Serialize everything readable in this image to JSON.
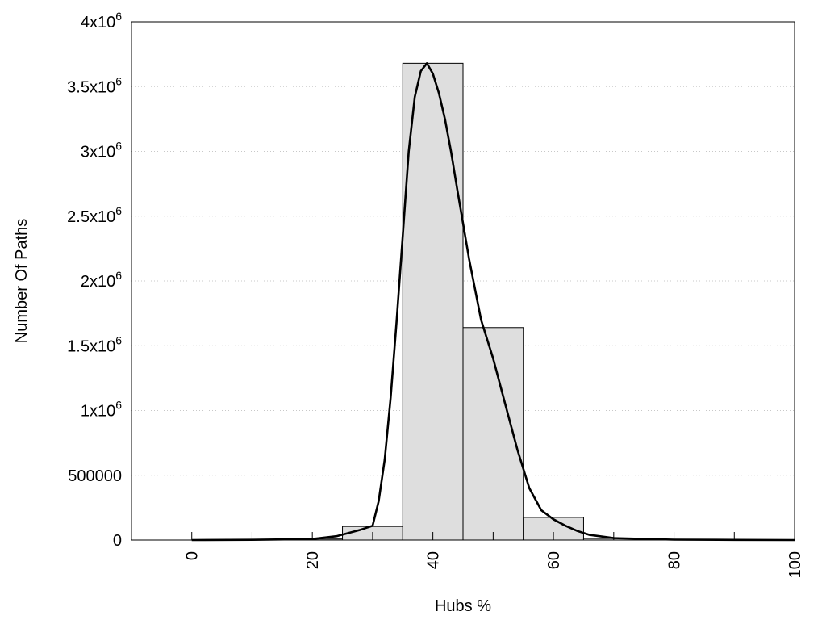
{
  "chart_data": {
    "type": "bar",
    "title": "",
    "xlabel": "Hubs %",
    "ylabel": "Number Of Paths",
    "xlim": [
      -10,
      100
    ],
    "ylim": [
      0,
      4000000
    ],
    "x_ticks": [
      {
        "value": 0,
        "label": "0"
      },
      {
        "value": 20,
        "label": "20"
      },
      {
        "value": 40,
        "label": "40"
      },
      {
        "value": 60,
        "label": "60"
      },
      {
        "value": 80,
        "label": "80"
      },
      {
        "value": 100,
        "label": "100"
      }
    ],
    "x_minor_ticks": [
      10,
      30,
      50,
      70,
      90
    ],
    "y_ticks": [
      {
        "value": 0,
        "base": "0",
        "exp": ""
      },
      {
        "value": 500000,
        "base": "500000",
        "exp": ""
      },
      {
        "value": 1000000,
        "base": "1x10",
        "exp": "6"
      },
      {
        "value": 1500000,
        "base": "1.5x10",
        "exp": "6"
      },
      {
        "value": 2000000,
        "base": "2x10",
        "exp": "6"
      },
      {
        "value": 2500000,
        "base": "2.5x10",
        "exp": "6"
      },
      {
        "value": 3000000,
        "base": "3x10",
        "exp": "6"
      },
      {
        "value": 3500000,
        "base": "3.5x10",
        "exp": "6"
      },
      {
        "value": 4000000,
        "base": "4x10",
        "exp": "6"
      }
    ],
    "grid": "horizontal-dotted",
    "bar_width": 10,
    "bars": [
      {
        "x": 0,
        "value": 0
      },
      {
        "x": 10,
        "value": 2000
      },
      {
        "x": 20,
        "value": 8000
      },
      {
        "x": 30,
        "value": 105000
      },
      {
        "x": 40,
        "value": 3680000
      },
      {
        "x": 50,
        "value": 1640000
      },
      {
        "x": 60,
        "value": 175000
      },
      {
        "x": 70,
        "value": 12000
      },
      {
        "x": 80,
        "value": 3000
      },
      {
        "x": 90,
        "value": 1000
      }
    ],
    "curve": [
      {
        "x": 0,
        "y": 0
      },
      {
        "x": 10,
        "y": 2000
      },
      {
        "x": 20,
        "y": 8000
      },
      {
        "x": 24,
        "y": 30000
      },
      {
        "x": 28,
        "y": 80000
      },
      {
        "x": 30,
        "y": 110000
      },
      {
        "x": 31,
        "y": 300000
      },
      {
        "x": 32,
        "y": 620000
      },
      {
        "x": 33,
        "y": 1100000
      },
      {
        "x": 34,
        "y": 1700000
      },
      {
        "x": 35,
        "y": 2350000
      },
      {
        "x": 36,
        "y": 3000000
      },
      {
        "x": 37,
        "y": 3420000
      },
      {
        "x": 38,
        "y": 3620000
      },
      {
        "x": 39,
        "y": 3680000
      },
      {
        "x": 40,
        "y": 3600000
      },
      {
        "x": 41,
        "y": 3450000
      },
      {
        "x": 42,
        "y": 3250000
      },
      {
        "x": 43,
        "y": 3000000
      },
      {
        "x": 44,
        "y": 2720000
      },
      {
        "x": 46,
        "y": 2170000
      },
      {
        "x": 48,
        "y": 1700000
      },
      {
        "x": 50,
        "y": 1400000
      },
      {
        "x": 52,
        "y": 1050000
      },
      {
        "x": 54,
        "y": 700000
      },
      {
        "x": 56,
        "y": 400000
      },
      {
        "x": 58,
        "y": 230000
      },
      {
        "x": 60,
        "y": 160000
      },
      {
        "x": 62,
        "y": 110000
      },
      {
        "x": 64,
        "y": 70000
      },
      {
        "x": 66,
        "y": 40000
      },
      {
        "x": 70,
        "y": 15000
      },
      {
        "x": 80,
        "y": 3000
      },
      {
        "x": 90,
        "y": 1000
      },
      {
        "x": 100,
        "y": 0
      }
    ]
  }
}
